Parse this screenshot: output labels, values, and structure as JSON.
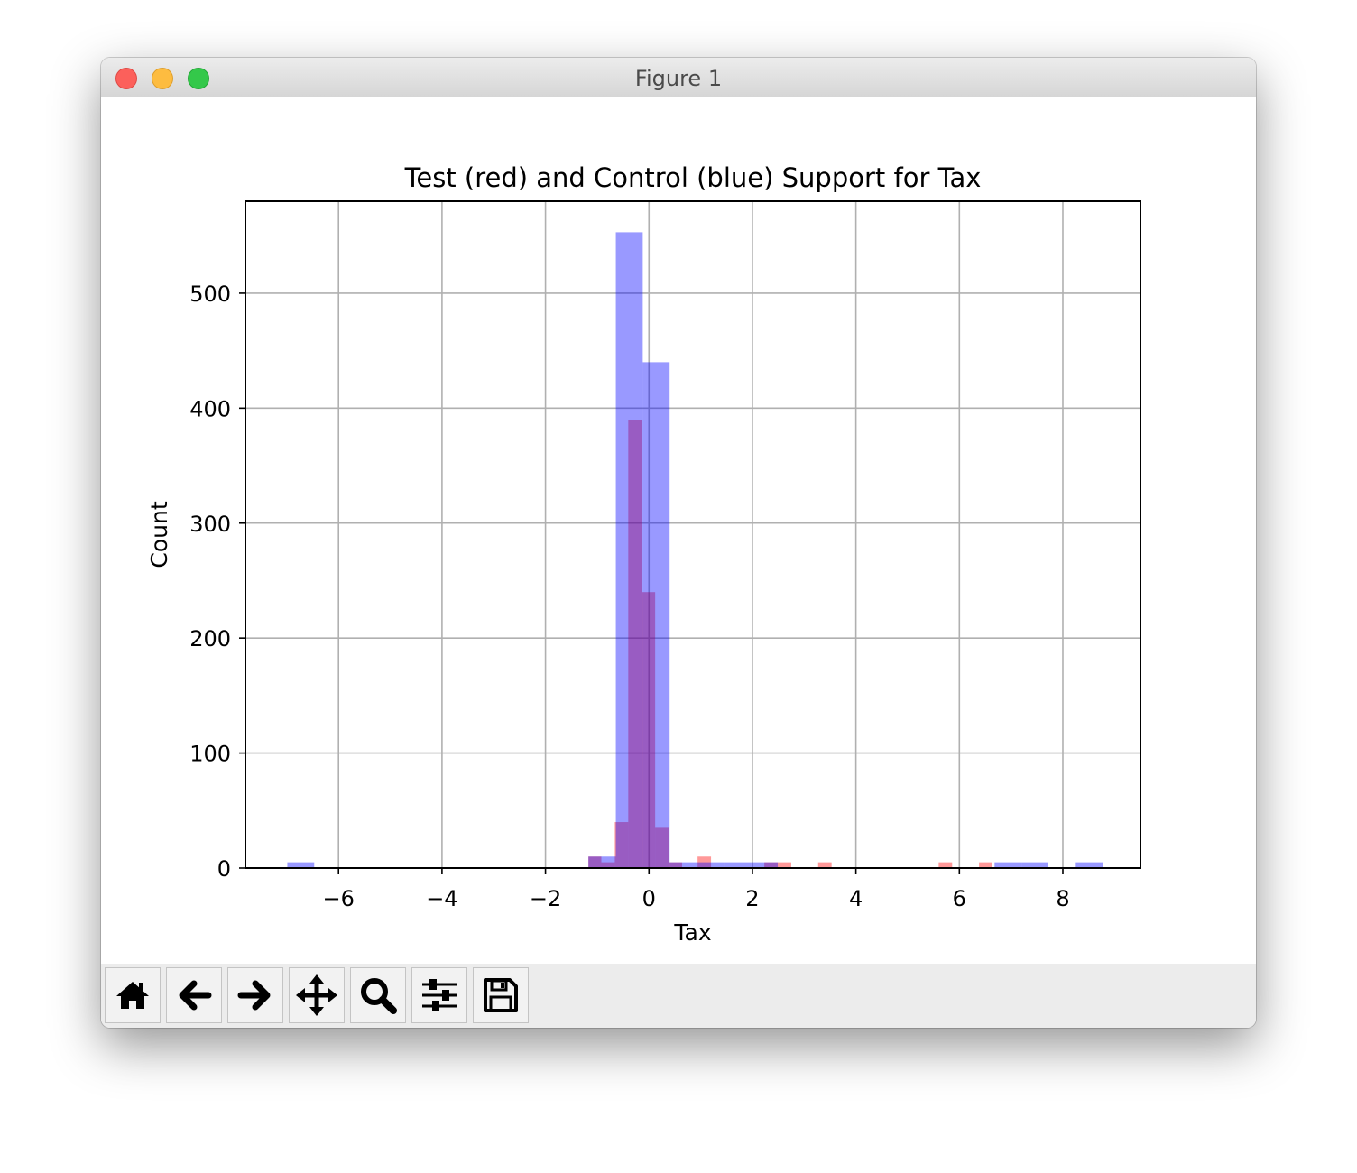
{
  "window": {
    "title": "Figure 1"
  },
  "toolbar": {
    "buttons": [
      {
        "icon": "home-icon",
        "name": "home-button"
      },
      {
        "icon": "arrow-left-icon",
        "name": "back-button"
      },
      {
        "icon": "arrow-right-icon",
        "name": "forward-button"
      },
      {
        "icon": "move-icon",
        "name": "pan-button"
      },
      {
        "icon": "magnifier-icon",
        "name": "zoom-button"
      },
      {
        "icon": "sliders-icon",
        "name": "configure-subplots-button"
      },
      {
        "icon": "floppy-disk-icon",
        "name": "save-button"
      }
    ]
  },
  "chart_data": {
    "type": "bar",
    "title": "Test (red) and Control (blue) Support for Tax",
    "xlabel": "Tax",
    "ylabel": "Count",
    "xlim": [
      -7.8,
      9.5
    ],
    "ylim": [
      0,
      580
    ],
    "xticks": [
      -6,
      -4,
      -2,
      0,
      2,
      4,
      6,
      8
    ],
    "xtick_labels": [
      "−6",
      "−4",
      "−2",
      "0",
      "2",
      "4",
      "6",
      "8"
    ],
    "yticks": [
      0,
      100,
      200,
      300,
      400,
      500
    ],
    "ytick_labels": [
      "0",
      "100",
      "200",
      "300",
      "400",
      "500"
    ],
    "grid": true,
    "colors": {
      "test": "#ff0000",
      "control": "#0000ff"
    },
    "bar_opacity": 0.4,
    "series": [
      {
        "color": "#ff0000",
        "bins": [
          {
            "x0": -1.17,
            "x1": -0.92,
            "count": 10
          },
          {
            "x0": -0.92,
            "x1": -0.66,
            "count": 5
          },
          {
            "x0": -0.66,
            "x1": -0.4,
            "count": 40
          },
          {
            "x0": -0.4,
            "x1": -0.14,
            "count": 390
          },
          {
            "x0": -0.14,
            "x1": 0.12,
            "count": 240
          },
          {
            "x0": 0.12,
            "x1": 0.38,
            "count": 35
          },
          {
            "x0": 0.38,
            "x1": 0.64,
            "count": 5
          },
          {
            "x0": 0.94,
            "x1": 1.2,
            "count": 10
          },
          {
            "x0": 2.23,
            "x1": 2.49,
            "count": 5
          },
          {
            "x0": 2.49,
            "x1": 2.75,
            "count": 5
          },
          {
            "x0": 3.27,
            "x1": 3.53,
            "count": 5
          },
          {
            "x0": 5.6,
            "x1": 5.86,
            "count": 5
          },
          {
            "x0": 6.38,
            "x1": 6.64,
            "count": 5
          }
        ]
      },
      {
        "color": "#0000ff",
        "bins": [
          {
            "x0": -6.99,
            "x1": -6.47,
            "count": 5
          },
          {
            "x0": -1.17,
            "x1": -0.64,
            "count": 10
          },
          {
            "x0": -0.64,
            "x1": -0.12,
            "count": 553
          },
          {
            "x0": -0.12,
            "x1": 0.4,
            "count": 440
          },
          {
            "x0": 0.4,
            "x1": 0.92,
            "count": 5
          },
          {
            "x0": 0.92,
            "x1": 1.45,
            "count": 5
          },
          {
            "x0": 1.45,
            "x1": 1.97,
            "count": 5
          },
          {
            "x0": 1.97,
            "x1": 2.49,
            "count": 5
          },
          {
            "x0": 6.68,
            "x1": 7.2,
            "count": 5
          },
          {
            "x0": 7.2,
            "x1": 7.72,
            "count": 5
          },
          {
            "x0": 8.25,
            "x1": 8.77,
            "count": 5
          }
        ]
      }
    ]
  }
}
